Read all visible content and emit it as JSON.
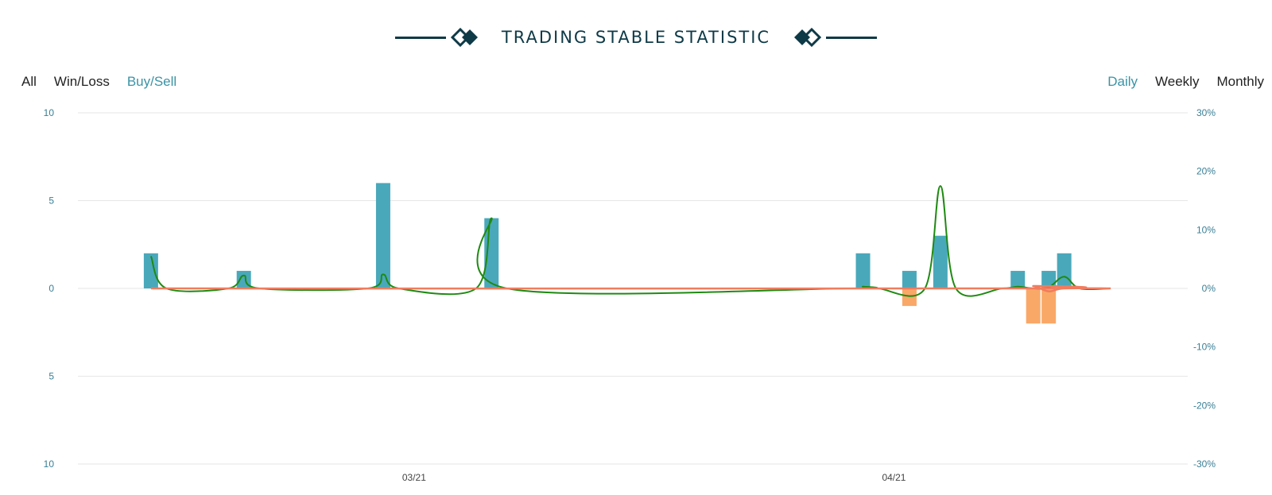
{
  "header": {
    "title": "TRADING STABLE STATISTIC"
  },
  "filters": {
    "type_tabs": [
      {
        "label": "All",
        "active": false
      },
      {
        "label": "Win/Loss",
        "active": false
      },
      {
        "label": "Buy/Sell",
        "active": true
      }
    ],
    "period_tabs": [
      {
        "label": "Daily",
        "active": true
      },
      {
        "label": "Weekly",
        "active": false
      },
      {
        "label": "Monthly",
        "active": false
      }
    ]
  },
  "colors": {
    "accent": "#3a93a6",
    "title": "#0e3a47",
    "buy_bar": "#4aa8bb",
    "sell_bar": "#f9a868",
    "green_line": "#1f8a12",
    "salmon_line": "#f07c5e",
    "grid": "#e6e6e6"
  },
  "chart_data": {
    "type": "bar",
    "left_axis": {
      "ticks": [
        "10",
        "5",
        "0",
        "5",
        "10"
      ],
      "ylim": [
        -10,
        10
      ]
    },
    "right_axis": {
      "ticks": [
        "30%",
        "20%",
        "10%",
        "0%",
        "-10%",
        "-20%",
        "-30%"
      ],
      "ylim": [
        -30,
        30
      ]
    },
    "x_ticks": [
      {
        "label": "03/21",
        "day": 21
      },
      {
        "label": "04/21",
        "day": 52
      }
    ],
    "x_range_days": [
      0,
      68
    ],
    "series": [
      {
        "kind": "bar",
        "role": "buy",
        "points": [
          [
            4,
            2
          ],
          [
            10,
            1
          ],
          [
            19,
            6
          ],
          [
            26,
            4
          ],
          [
            50,
            2
          ],
          [
            53,
            1
          ],
          [
            55,
            3
          ],
          [
            60,
            1
          ],
          [
            62,
            1
          ],
          [
            63,
            2
          ]
        ]
      },
      {
        "kind": "bar",
        "role": "sell",
        "points": [
          [
            53,
            -1
          ],
          [
            61,
            -2
          ],
          [
            62,
            -2
          ]
        ]
      },
      {
        "kind": "line",
        "role": "green",
        "axis": "right",
        "points": [
          [
            4,
            5.5
          ],
          [
            5,
            0
          ],
          [
            9,
            0
          ],
          [
            10,
            2.2
          ],
          [
            11,
            0
          ],
          [
            18,
            0
          ],
          [
            19,
            2.4
          ],
          [
            20,
            0
          ],
          [
            25,
            0
          ],
          [
            26,
            12
          ],
          [
            27,
            0
          ],
          [
            49,
            0
          ],
          [
            50,
            0.3
          ],
          [
            51,
            0
          ],
          [
            54,
            0
          ],
          [
            55,
            17.5
          ],
          [
            56,
            0
          ],
          [
            59,
            0
          ],
          [
            60,
            0.3
          ],
          [
            61,
            0
          ],
          [
            62,
            0.2
          ],
          [
            63,
            2
          ],
          [
            64,
            0
          ],
          [
            66,
            0
          ]
        ]
      },
      {
        "kind": "line",
        "role": "salmon",
        "axis": "right",
        "points": [
          [
            4,
            0
          ],
          [
            60,
            0
          ],
          [
            61,
            0.4
          ],
          [
            62,
            -0.5
          ],
          [
            63,
            0
          ],
          [
            66,
            0
          ]
        ]
      }
    ]
  }
}
